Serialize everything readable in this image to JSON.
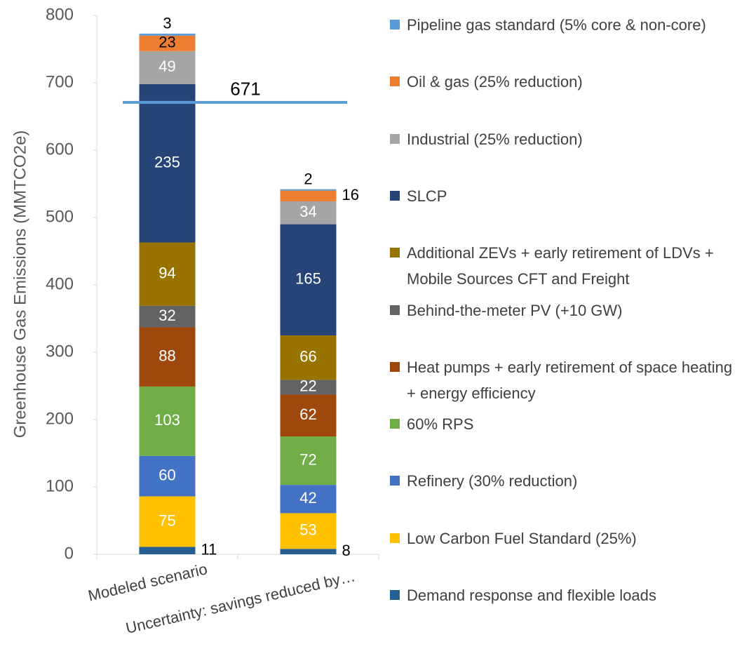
{
  "chart_data": {
    "type": "stacked_bar",
    "y_label": "Greenhouse Gas Emissions (MMTCO2e)",
    "categories": [
      "Modeled scenario",
      "Uncertainty: savings reduced by…"
    ],
    "series": [
      {
        "name": "Demand response and flexible loads",
        "color": "#255e91",
        "label_color": "#000000",
        "values": [
          11,
          8
        ]
      },
      {
        "name": "Low Carbon Fuel Standard (25%)",
        "color": "#ffc000",
        "label_color": "#ffffff",
        "values": [
          75,
          53
        ]
      },
      {
        "name": "Refinery (30% reduction)",
        "color": "#4472c4",
        "label_color": "#ffffff",
        "values": [
          60,
          42
        ]
      },
      {
        "name": "60% RPS",
        "color": "#70ad47",
        "label_color": "#ffffff",
        "values": [
          103,
          72
        ]
      },
      {
        "name": "Heat pumps + early retirement of space heating + energy efficiency",
        "color": "#9e480e",
        "label_color": "#ffffff",
        "values": [
          88,
          62
        ]
      },
      {
        "name": "Behind-the-meter PV (+10 GW)",
        "color": "#636363",
        "label_color": "#ffffff",
        "values": [
          32,
          22
        ]
      },
      {
        "name": "Additional ZEVs + early retirement of LDVs + Mobile Sources CFT and Freight",
        "color": "#997300",
        "label_color": "#ffffff",
        "values": [
          94,
          66
        ]
      },
      {
        "name": "SLCP",
        "color": "#264478",
        "label_color": "#ffffff",
        "values": [
          235,
          165
        ]
      },
      {
        "name": "Industrial (25% reduction)",
        "color": "#a5a5a5",
        "label_color": "#ffffff",
        "values": [
          49,
          34
        ]
      },
      {
        "name": "Oil & gas (25% reduction)",
        "color": "#ed7d31",
        "label_color": "#000000",
        "values": [
          23,
          16
        ]
      },
      {
        "name": "Pipeline gas standard (5% core & non-core)",
        "color": "#5b9bd5",
        "label_color": "#000000",
        "values": [
          3,
          2
        ]
      }
    ],
    "reference_line": {
      "value": 671,
      "color": "#5b9bd5"
    },
    "ylim": [
      0,
      800
    ],
    "yticks": [
      0,
      100,
      200,
      300,
      400,
      500,
      600,
      700,
      800
    ],
    "grid": false,
    "legend": "right"
  }
}
